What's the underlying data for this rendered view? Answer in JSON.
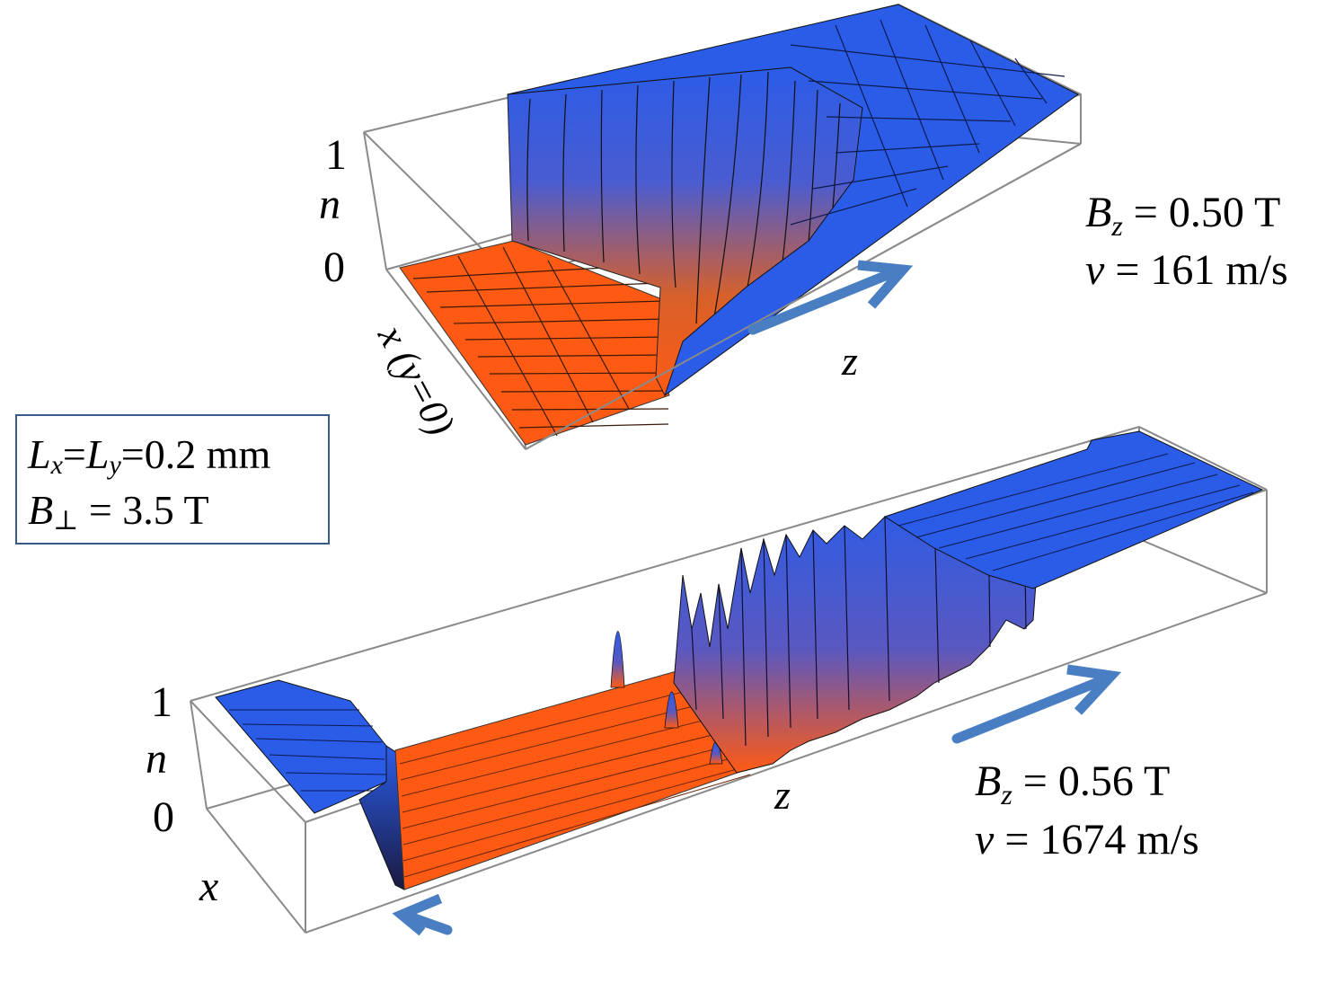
{
  "colors": {
    "blue": "#2b5ce8",
    "blue_dark": "#1b3fb8",
    "orange": "#ff5a14",
    "orange_dark": "#d84508",
    "arrow": "#4a7ec2",
    "frame": "#8a8a8a",
    "box_border": "#3b5a8c"
  },
  "top_panel": {
    "n_tick_1": "1",
    "n_label": "n",
    "n_tick_0": "0",
    "x_axis_label": "x (y=0)",
    "z_axis_label": "z",
    "bz_symbol": "B",
    "bz_subscript": "z",
    "bz_value": " = 0.50 T",
    "v_symbol": "v",
    "v_value": " = 161 m/s"
  },
  "bottom_panel": {
    "n_tick_1": "1",
    "n_label": "n",
    "n_tick_0": "0",
    "x_axis_label": "x",
    "z_axis_label": "z",
    "bz_symbol": "B",
    "bz_subscript": "z",
    "bz_value": " = 0.56 T",
    "v_symbol": "v",
    "v_value": " = 1674 m/s"
  },
  "param_box": {
    "lx": "L",
    "lx_sub": "x",
    "eq1": "=",
    "ly": "L",
    "ly_sub": "y",
    "lxly_value": "=0.2 mm",
    "bperp": "B",
    "bperp_sub": "⊥",
    "bperp_value": " = 3.5 T"
  }
}
